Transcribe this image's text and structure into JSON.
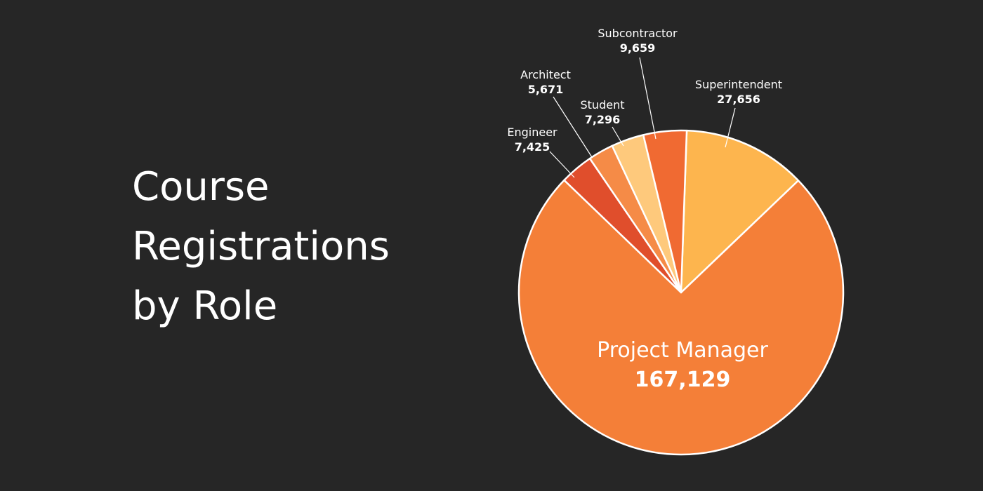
{
  "title_lines": [
    "Course",
    "Registrations",
    "by Role"
  ],
  "chart_data": {
    "type": "pie",
    "title": "Course Registrations by Role",
    "slices": [
      {
        "label": "Superintendent",
        "value": 27656,
        "value_text": "27,656",
        "color": "#fdb54e"
      },
      {
        "label": "Project Manager",
        "value": 167129,
        "value_text": "167,129",
        "color": "#f47f38"
      },
      {
        "label": "Engineer",
        "value": 7425,
        "value_text": "7,425",
        "color": "#e04e2c"
      },
      {
        "label": "Architect",
        "value": 5671,
        "value_text": "5,671",
        "color": "#f58b47"
      },
      {
        "label": "Student",
        "value": 7296,
        "value_text": "7,296",
        "color": "#fec97c"
      },
      {
        "label": "Subcontractor",
        "value": 9659,
        "value_text": "9,659",
        "color": "#f06a32"
      }
    ],
    "slice_border": "#ffffff"
  },
  "colors": {
    "background": "#262626",
    "text": "#ffffff",
    "leader": "#ffffff"
  }
}
